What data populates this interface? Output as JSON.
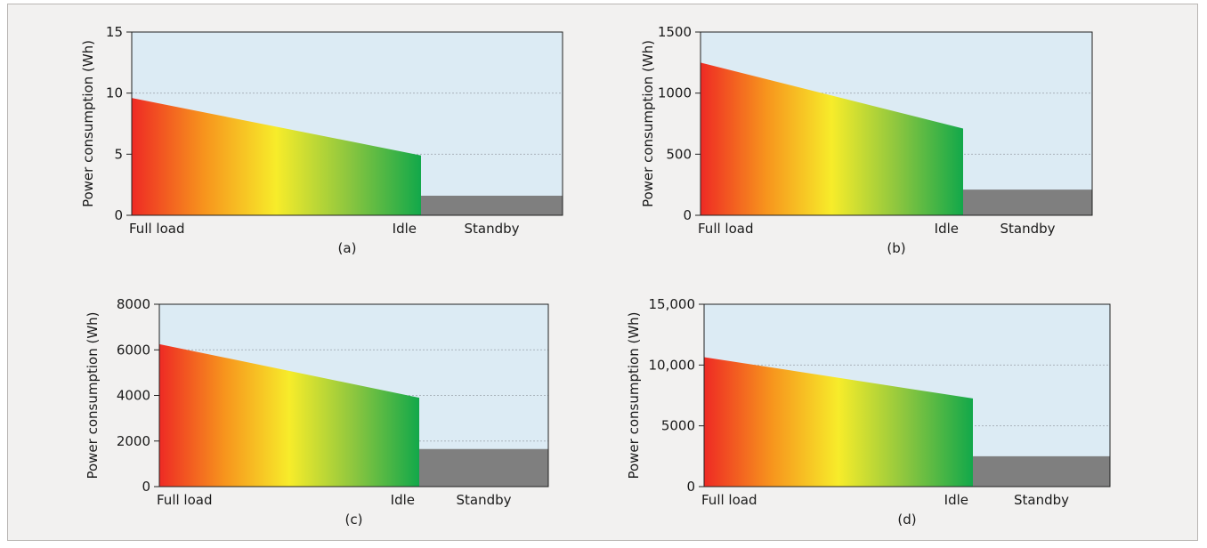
{
  "colors": {
    "background": "#f2f1f0",
    "plot_area": "#dcebf4",
    "gridline": "#a9b4bc",
    "standby_fill": "#7f7f7f",
    "gradient_stops": [
      "#ee2a24",
      "#f7941d",
      "#f7ec2a",
      "#8cc63f",
      "#12a84a"
    ]
  },
  "chart_data": [
    {
      "panel": "(a)",
      "type": "area",
      "title": "",
      "ylabel": "Power consumption (Wh)",
      "ylim": [
        0,
        15
      ],
      "yticks": [
        "0",
        "5",
        "10",
        "15"
      ],
      "x_tick_labels": [
        "Full load",
        "Idle",
        "Standby"
      ],
      "series": [
        {
          "name": "",
          "x": [
            "Full load",
            "Idle"
          ],
          "values": [
            9.6,
            4.9
          ]
        },
        {
          "name": "",
          "x": [
            "Idle",
            "Standby"
          ],
          "values": [
            1.6,
            1.6
          ]
        }
      ],
      "grid": true
    },
    {
      "panel": "(b)",
      "type": "area",
      "title": "",
      "ylabel": "Power consumption (Wh)",
      "ylim": [
        0,
        1500
      ],
      "yticks": [
        "0",
        "500",
        "1000",
        "1500"
      ],
      "x_tick_labels": [
        "Full load",
        "Idle",
        "Standby"
      ],
      "series": [
        {
          "name": "",
          "x": [
            "Full load",
            "Idle"
          ],
          "values": [
            1250,
            710
          ]
        },
        {
          "name": "",
          "x": [
            "Idle",
            "Standby"
          ],
          "values": [
            210,
            210
          ]
        }
      ],
      "grid": true
    },
    {
      "panel": "(c)",
      "type": "area",
      "title": "",
      "ylabel": "Power consumption (Wh)",
      "ylim": [
        0,
        8000
      ],
      "yticks": [
        "0",
        "2000",
        "4000",
        "6000",
        "8000"
      ],
      "x_tick_labels": [
        "Full load",
        "Idle",
        "Standby"
      ],
      "series": [
        {
          "name": "",
          "x": [
            "Full load",
            "Idle"
          ],
          "values": [
            6250,
            3900
          ]
        },
        {
          "name": "",
          "x": [
            "Idle",
            "Standby"
          ],
          "values": [
            1650,
            1650
          ]
        }
      ],
      "grid": true
    },
    {
      "panel": "(d)",
      "type": "area",
      "title": "",
      "ylabel": "Power consumption (Wh)",
      "ylim": [
        0,
        15000
      ],
      "yticks": [
        "0",
        "5000",
        "10,000",
        "15,000"
      ],
      "x_tick_labels": [
        "Full load",
        "Idle",
        "Standby"
      ],
      "series": [
        {
          "name": "",
          "x": [
            "Full load",
            "Idle"
          ],
          "values": [
            10650,
            7250
          ]
        },
        {
          "name": "",
          "x": [
            "Idle",
            "Standby"
          ],
          "values": [
            2500,
            2500
          ]
        }
      ],
      "grid": true
    }
  ]
}
